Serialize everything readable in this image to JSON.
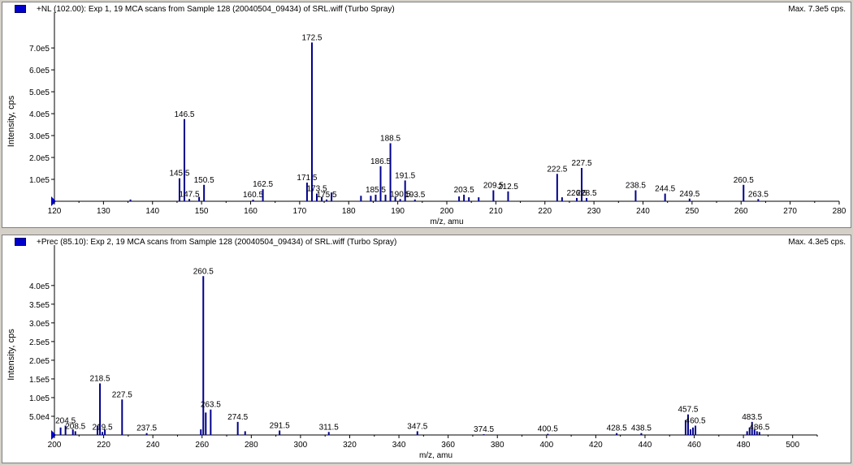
{
  "colors": {
    "peak": "#00008b",
    "axis": "#000000",
    "label": "#000000",
    "marker": "#0000cc"
  },
  "chart_data": [
    {
      "type": "bar",
      "title": "+NL (102.00): Exp 1, 19 MCA scans from Sample 128 (20040504_09434) of SRL.wiff (Turbo Spray)",
      "max_label": "Max. 7.3e5 cps.",
      "xlabel": "m/z, amu",
      "ylabel": "Intensity, cps",
      "xlim": [
        120,
        280
      ],
      "ylim": [
        0,
        730000.0
      ],
      "xticks": [
        120,
        130,
        140,
        150,
        160,
        170,
        180,
        190,
        200,
        210,
        220,
        230,
        240,
        250,
        260,
        270,
        280
      ],
      "yticks": [
        {
          "value": 100000,
          "label": "1.0e5"
        },
        {
          "value": 200000,
          "label": "2.0e5"
        },
        {
          "value": 300000,
          "label": "3.0e5"
        },
        {
          "value": 400000,
          "label": "4.0e5"
        },
        {
          "value": 500000,
          "label": "5.0e5"
        },
        {
          "value": 600000,
          "label": "6.0e5"
        },
        {
          "value": 700000,
          "label": "7.0e5"
        }
      ],
      "peaks": [
        {
          "x": 135.5,
          "y": 8000
        },
        {
          "x": 145.5,
          "y": 105000,
          "label": "145.5"
        },
        {
          "x": 146.5,
          "y": 375000,
          "label": "146.5"
        },
        {
          "x": 147.5,
          "y": 10000,
          "label": "147.5"
        },
        {
          "x": 149.5,
          "y": 20000
        },
        {
          "x": 150.5,
          "y": 75000,
          "label": "150.5"
        },
        {
          "x": 160.5,
          "y": 7000,
          "label": "160.5"
        },
        {
          "x": 162.5,
          "y": 55000,
          "label": "162.5"
        },
        {
          "x": 171.5,
          "y": 85000,
          "label": "171.5"
        },
        {
          "x": 172.5,
          "y": 725000,
          "label": "172.5"
        },
        {
          "x": 173.5,
          "y": 35000,
          "label": "173.5"
        },
        {
          "x": 174.5,
          "y": 20000
        },
        {
          "x": 175.5,
          "y": 8000,
          "label": "175.5"
        },
        {
          "x": 176.5,
          "y": 40000
        },
        {
          "x": 182.5,
          "y": 25000
        },
        {
          "x": 184.5,
          "y": 25000
        },
        {
          "x": 185.5,
          "y": 30000,
          "label": "185.5"
        },
        {
          "x": 186.5,
          "y": 160000,
          "label": "186.5"
        },
        {
          "x": 187.5,
          "y": 30000
        },
        {
          "x": 188.5,
          "y": 265000,
          "label": "188.5"
        },
        {
          "x": 189.5,
          "y": 20000
        },
        {
          "x": 190.5,
          "y": 10000,
          "label": "190.5"
        },
        {
          "x": 191.5,
          "y": 95000,
          "label": "191.5"
        },
        {
          "x": 193.5,
          "y": 8000,
          "label": "193.5"
        },
        {
          "x": 202.5,
          "y": 22000
        },
        {
          "x": 203.5,
          "y": 30000,
          "label": "203.5"
        },
        {
          "x": 204.5,
          "y": 18000
        },
        {
          "x": 206.5,
          "y": 18000
        },
        {
          "x": 209.5,
          "y": 50000,
          "label": "209.5"
        },
        {
          "x": 212.5,
          "y": 45000,
          "label": "212.5"
        },
        {
          "x": 222.5,
          "y": 125000,
          "label": "222.5"
        },
        {
          "x": 223.5,
          "y": 18000
        },
        {
          "x": 226.5,
          "y": 15000,
          "label": "226.5"
        },
        {
          "x": 227.5,
          "y": 152000,
          "label": "227.5"
        },
        {
          "x": 228.5,
          "y": 15000,
          "label": "228.5"
        },
        {
          "x": 238.5,
          "y": 50000,
          "label": "238.5"
        },
        {
          "x": 244.5,
          "y": 35000,
          "label": "244.5"
        },
        {
          "x": 249.5,
          "y": 12000,
          "label": "249.5"
        },
        {
          "x": 260.5,
          "y": 75000,
          "label": "260.5"
        },
        {
          "x": 263.5,
          "y": 10000,
          "label": "263.5"
        }
      ]
    },
    {
      "type": "bar",
      "title": "+Prec (85.10): Exp 2, 19 MCA scans from Sample 128 (20040504_09434) of SRL.wiff (Turbo Spray)",
      "max_label": "Max. 4.3e5 cps.",
      "xlabel": "m/z, amu",
      "ylabel": "Intensity, cps",
      "xlim": [
        200,
        510
      ],
      "ylim": [
        0,
        430000.0
      ],
      "xticks": [
        200,
        220,
        240,
        260,
        280,
        300,
        320,
        340,
        360,
        380,
        400,
        420,
        440,
        460,
        480,
        500
      ],
      "yticks": [
        {
          "value": 50000,
          "label": "5.0e4"
        },
        {
          "value": 100000,
          "label": "1.0e5"
        },
        {
          "value": 150000,
          "label": "1.5e5"
        },
        {
          "value": 200000,
          "label": "2.0e5"
        },
        {
          "value": 250000,
          "label": "2.5e5"
        },
        {
          "value": 300000,
          "label": "3.0e5"
        },
        {
          "value": 350000,
          "label": "3.5e5"
        },
        {
          "value": 400000,
          "label": "4.0e5"
        }
      ],
      "peaks": [
        {
          "x": 202.5,
          "y": 20000
        },
        {
          "x": 204.5,
          "y": 25000,
          "label": "204.5"
        },
        {
          "x": 207.5,
          "y": 15000
        },
        {
          "x": 208.5,
          "y": 10000,
          "label": "208.5"
        },
        {
          "x": 217.5,
          "y": 25000
        },
        {
          "x": 218.5,
          "y": 138000,
          "label": "218.5"
        },
        {
          "x": 219.5,
          "y": 8000,
          "label": "219.5"
        },
        {
          "x": 220.5,
          "y": 15000
        },
        {
          "x": 227.5,
          "y": 95000,
          "label": "227.5"
        },
        {
          "x": 237.5,
          "y": 5000,
          "label": "237.5"
        },
        {
          "x": 259.5,
          "y": 15000
        },
        {
          "x": 260.5,
          "y": 425000,
          "label": "260.5"
        },
        {
          "x": 261.5,
          "y": 60000
        },
        {
          "x": 263.5,
          "y": 68000,
          "label": "263.5"
        },
        {
          "x": 274.5,
          "y": 35000,
          "label": "274.5"
        },
        {
          "x": 277.5,
          "y": 10000
        },
        {
          "x": 291.5,
          "y": 12000,
          "label": "291.5"
        },
        {
          "x": 311.5,
          "y": 8000,
          "label": "311.5"
        },
        {
          "x": 347.5,
          "y": 10000,
          "label": "347.5"
        },
        {
          "x": 374.5,
          "y": 2000,
          "label": "374.5"
        },
        {
          "x": 400.5,
          "y": 3000,
          "label": "400.5"
        },
        {
          "x": 428.5,
          "y": 5000,
          "label": "428.5"
        },
        {
          "x": 438.5,
          "y": 5000,
          "label": "438.5"
        },
        {
          "x": 456.5,
          "y": 40000
        },
        {
          "x": 457.5,
          "y": 55000,
          "label": "457.5"
        },
        {
          "x": 458.5,
          "y": 15000
        },
        {
          "x": 459.5,
          "y": 20000
        },
        {
          "x": 460.5,
          "y": 25000,
          "label": "460.5"
        },
        {
          "x": 481.5,
          "y": 10000
        },
        {
          "x": 482.5,
          "y": 20000
        },
        {
          "x": 483.5,
          "y": 35000,
          "label": "483.5"
        },
        {
          "x": 484.5,
          "y": 15000
        },
        {
          "x": 485.5,
          "y": 10000
        },
        {
          "x": 486.5,
          "y": 8000,
          "label": "486.5"
        }
      ]
    }
  ]
}
